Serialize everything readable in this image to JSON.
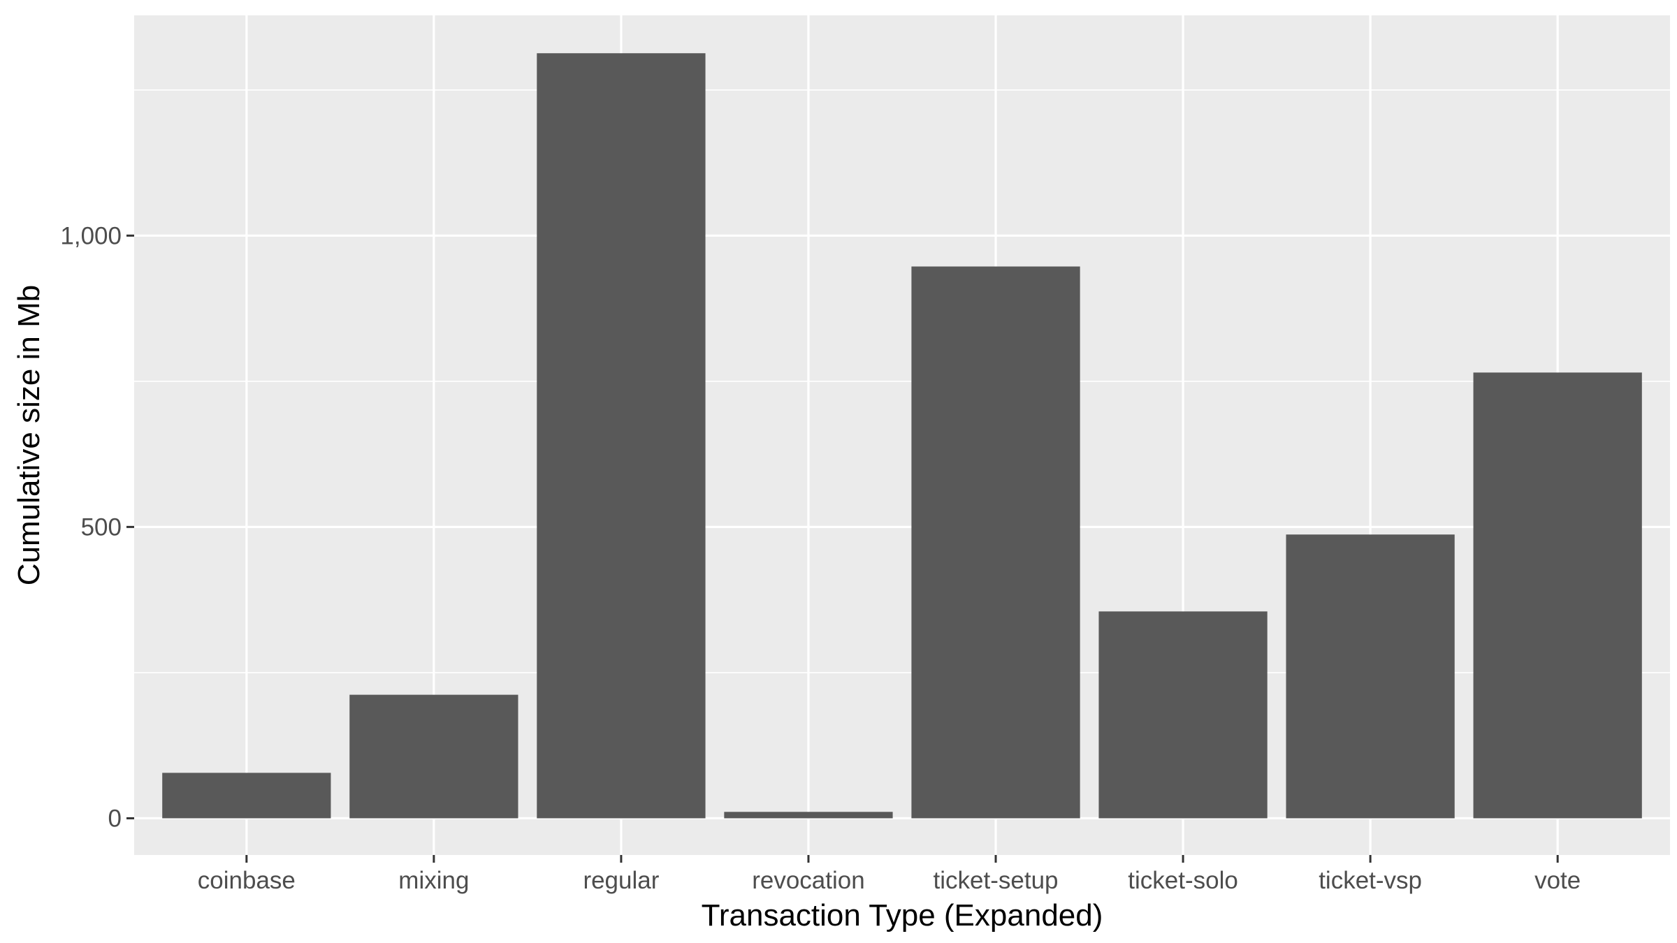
{
  "chart_data": {
    "type": "bar",
    "title": "",
    "xlabel": "Transaction Type (Expanded)",
    "ylabel": "Cumulative size in Mb",
    "categories": [
      "coinbase",
      "mixing",
      "regular",
      "revocation",
      "ticket-setup",
      "ticket-solo",
      "ticket-vsp",
      "vote"
    ],
    "values": [
      78,
      212,
      1313,
      11,
      947,
      355,
      487,
      765
    ],
    "ylim": [
      -63,
      1378
    ],
    "y_ticks": [
      0,
      500,
      1000
    ],
    "y_tick_labels": [
      "0",
      "500",
      "1,000"
    ],
    "bar_color": "#595959",
    "panel_color": "#ebebeb",
    "grid": true,
    "legend": "none"
  }
}
